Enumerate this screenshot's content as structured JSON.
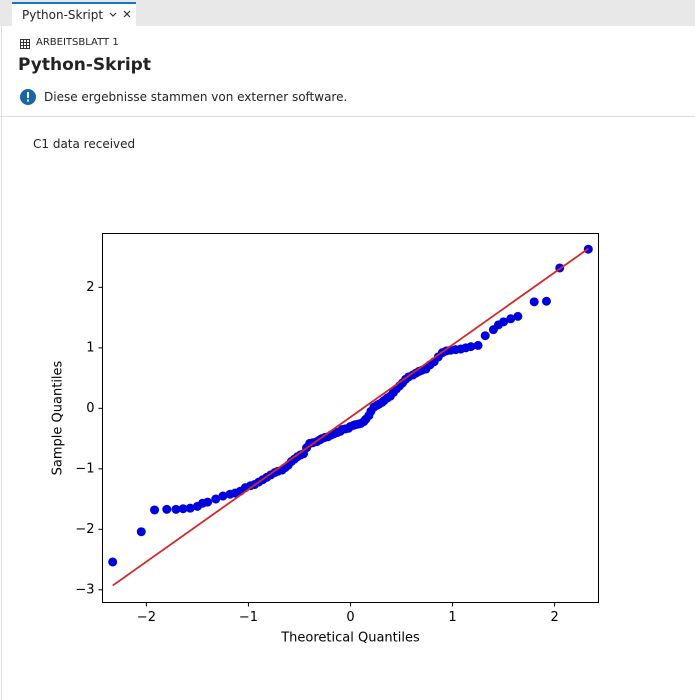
{
  "tab": {
    "label": "Python-Skript"
  },
  "header": {
    "sheet": "ARBEITSBLATT 1",
    "title": "Python-Skript",
    "info": "Diese ergebnisse stammen von externer software."
  },
  "output": {
    "message": "C1 data received"
  },
  "chart_data": {
    "type": "scatter",
    "xlabel": "Theoretical Quantiles",
    "ylabel": "Sample Quantiles",
    "x": [
      -2.33,
      -2.05,
      -1.92,
      -1.8,
      -1.71,
      -1.64,
      -1.57,
      -1.5,
      -1.45,
      -1.4,
      -1.32,
      -1.25,
      -1.18,
      -1.13,
      -1.08,
      -1.03,
      -0.98,
      -0.94,
      -0.9,
      -0.86,
      -0.82,
      -0.78,
      -0.74,
      -0.71,
      -0.67,
      -0.64,
      -0.61,
      -0.58,
      -0.55,
      -0.52,
      -0.49,
      -0.46,
      -0.43,
      -0.4,
      -0.37,
      -0.33,
      -0.3,
      -0.28,
      -0.25,
      -0.22,
      -0.19,
      -0.16,
      -0.13,
      -0.1,
      -0.08,
      -0.05,
      -0.02,
      0,
      0.03,
      0.05,
      0.08,
      0.1,
      0.13,
      0.15,
      0.18,
      0.2,
      0.23,
      0.26,
      0.28,
      0.31,
      0.33,
      0.36,
      0.39,
      0.42,
      0.45,
      0.48,
      0.51,
      0.54,
      0.57,
      0.61,
      0.64,
      0.67,
      0.7,
      0.74,
      0.78,
      0.82,
      0.86,
      0.9,
      0.94,
      0.98,
      1.03,
      1.08,
      1.13,
      1.18,
      1.25,
      1.32,
      1.4,
      1.45,
      1.5,
      1.57,
      1.64,
      1.8,
      1.92,
      2.05,
      2.33
    ],
    "values": [
      -2.54,
      -2.04,
      -1.68,
      -1.67,
      -1.67,
      -1.66,
      -1.65,
      -1.62,
      -1.57,
      -1.55,
      -1.5,
      -1.45,
      -1.42,
      -1.4,
      -1.37,
      -1.31,
      -1.28,
      -1.26,
      -1.22,
      -1.18,
      -1.14,
      -1.1,
      -1.06,
      -1.04,
      -1.02,
      -0.98,
      -0.94,
      -0.88,
      -0.84,
      -0.8,
      -0.77,
      -0.75,
      -0.65,
      -0.58,
      -0.57,
      -0.55,
      -0.52,
      -0.5,
      -0.48,
      -0.47,
      -0.44,
      -0.42,
      -0.4,
      -0.38,
      -0.35,
      -0.34,
      -0.33,
      -0.3,
      -0.28,
      -0.27,
      -0.26,
      -0.25,
      -0.22,
      -0.18,
      -0.12,
      -0.05,
      0.02,
      0.05,
      0.07,
      0.1,
      0.13,
      0.17,
      0.2,
      0.26,
      0.32,
      0.37,
      0.42,
      0.48,
      0.52,
      0.55,
      0.58,
      0.61,
      0.63,
      0.65,
      0.72,
      0.77,
      0.85,
      0.92,
      0.95,
      0.96,
      0.97,
      0.98,
      1.0,
      1.02,
      1.04,
      1.2,
      1.3,
      1.38,
      1.43,
      1.48,
      1.52,
      1.76,
      1.77,
      2.32,
      2.63
    ],
    "color": "#0000dd",
    "line": {
      "x": [
        -2.33,
        2.33
      ],
      "values": [
        -2.93,
        2.64
      ],
      "color": "#d62728"
    },
    "xlim": [
      -2.43,
      2.43
    ],
    "ylim": [
      -3.21,
      2.89
    ],
    "xticks": [
      {
        "value": -2,
        "label": "−2"
      },
      {
        "value": -1,
        "label": "−1"
      },
      0,
      1,
      2
    ],
    "yticks": [
      {
        "value": -3,
        "label": "−3"
      },
      {
        "value": -2,
        "label": "−2"
      },
      {
        "value": -1,
        "label": "−1"
      },
      0,
      1,
      2
    ]
  }
}
